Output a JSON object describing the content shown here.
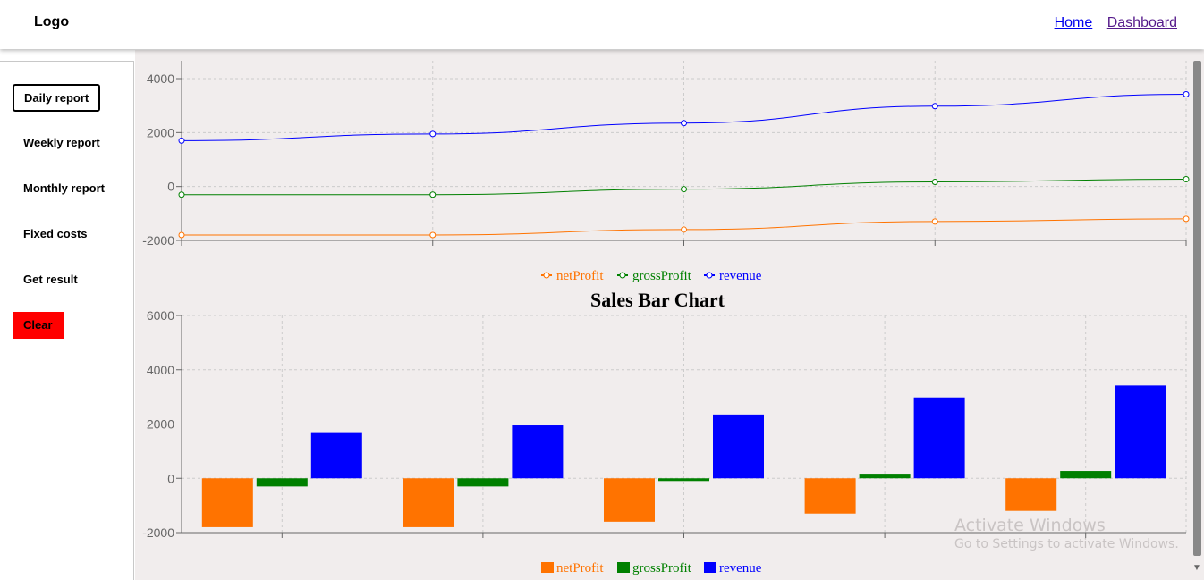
{
  "header": {
    "logo": "Logo",
    "nav": [
      {
        "label": "Home"
      },
      {
        "label": "Dashboard"
      }
    ]
  },
  "sidebar": {
    "items": [
      {
        "label": "Daily report"
      },
      {
        "label": "Weekly report"
      },
      {
        "label": "Monthly report"
      },
      {
        "label": "Fixed costs"
      },
      {
        "label": "Get result"
      },
      {
        "label": "Clear"
      }
    ]
  },
  "colors": {
    "netProfit": "#ff7300",
    "grossProfit": "#008000",
    "revenue": "#0000ff",
    "clear": "#ff0000"
  },
  "chart_data": [
    {
      "type": "line",
      "title": "",
      "x": [
        1,
        2,
        3,
        4,
        5
      ],
      "ylim": [
        -2000,
        4000
      ],
      "yticks": [
        "4000",
        "2000",
        "0",
        "-2000"
      ],
      "grid": true,
      "legend": "bottom-center",
      "series": [
        {
          "name": "netProfit",
          "values": [
            -1800,
            -1800,
            -1600,
            -1300,
            -1200
          ]
        },
        {
          "name": "grossProfit",
          "values": [
            -300,
            -300,
            -100,
            170,
            270
          ]
        },
        {
          "name": "revenue",
          "values": [
            1700,
            1950,
            2350,
            2980,
            3420
          ]
        }
      ]
    },
    {
      "type": "bar",
      "title": "Sales Bar Chart",
      "x": [
        1,
        2,
        3,
        4,
        5
      ],
      "ylim": [
        -2000,
        6000
      ],
      "yticks": [
        "6000",
        "4000",
        "2000",
        "0",
        "-2000"
      ],
      "grid": true,
      "legend": "bottom-center",
      "series": [
        {
          "name": "netProfit",
          "values": [
            -1800,
            -1800,
            -1600,
            -1300,
            -1200
          ]
        },
        {
          "name": "grossProfit",
          "values": [
            -300,
            -300,
            -100,
            170,
            270
          ]
        },
        {
          "name": "revenue",
          "values": [
            1700,
            1950,
            2350,
            2980,
            3420
          ]
        }
      ]
    }
  ],
  "watermark": {
    "line1": "Activate Windows",
    "line2": "Go to Settings to activate Windows."
  }
}
